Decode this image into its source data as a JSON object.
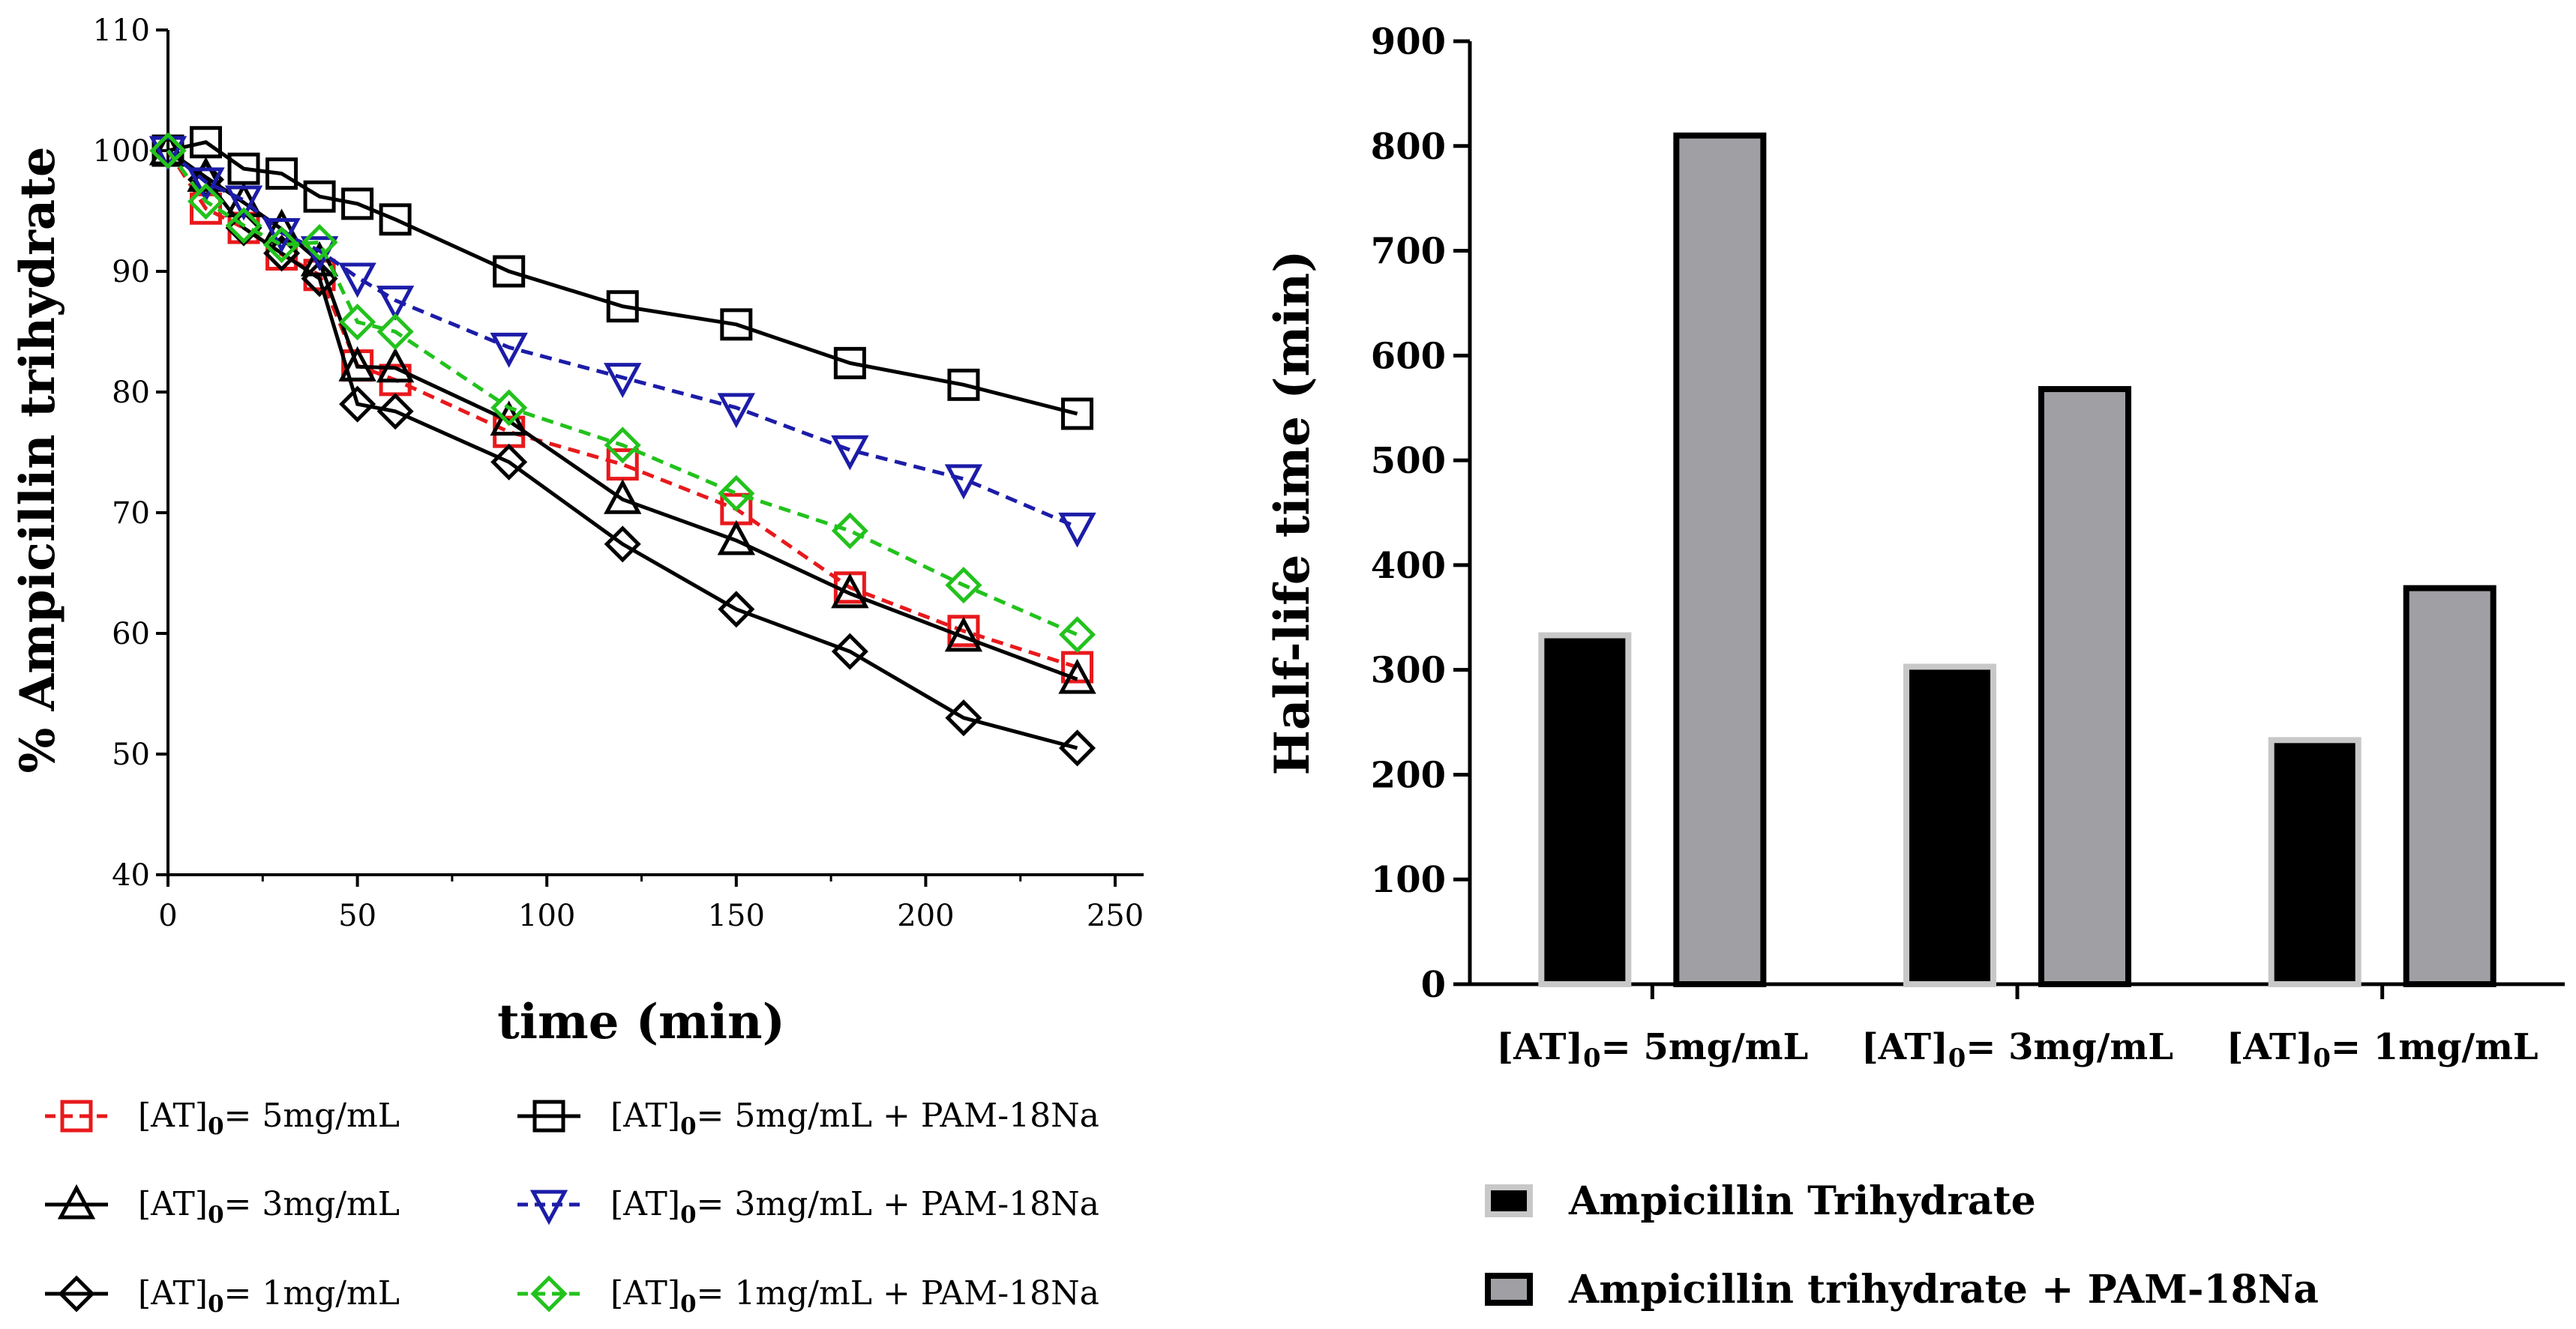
{
  "chart_data": [
    {
      "type": "line",
      "ylabel": "% Ampicillin trihydrate",
      "xlabel": "time (min)",
      "xlim": [
        0,
        250
      ],
      "ylim": [
        40,
        110
      ],
      "xticks": [
        "0",
        "50",
        "100",
        "150",
        "200",
        "250"
      ],
      "yticks": [
        "40",
        "50",
        "60",
        "70",
        "80",
        "90",
        "100",
        "110"
      ],
      "series": [
        {
          "key": "s5",
          "name": "[AT]0= 5mg/mL",
          "color": "#e8191c",
          "marker": "square",
          "dashed": true,
          "x": [
            0,
            10,
            20,
            30,
            40,
            50,
            60,
            90,
            120,
            150,
            180,
            210,
            240
          ],
          "y": [
            100,
            95.2,
            93.6,
            91.4,
            89.7,
            82.2,
            81.0,
            76.7,
            74.0,
            70.3,
            63.8,
            60.2,
            57.2
          ]
        },
        {
          "key": "s3",
          "name": "[AT]0= 3mg/mL",
          "color": "#000000",
          "marker": "triangle-up",
          "dashed": false,
          "x": [
            0,
            10,
            20,
            30,
            40,
            50,
            60,
            90,
            120,
            150,
            180,
            210,
            240
          ],
          "y": [
            100,
            97.8,
            95.7,
            93.5,
            90.8,
            82.1,
            82.0,
            77.6,
            71.1,
            67.7,
            63.3,
            59.7,
            56.2
          ]
        },
        {
          "key": "s1",
          "name": "[AT]0= 1mg/mL",
          "color": "#000000",
          "marker": "diamond",
          "dashed": false,
          "x": [
            0,
            10,
            20,
            30,
            40,
            50,
            60,
            90,
            120,
            150,
            180,
            210,
            240
          ],
          "y": [
            100,
            97.6,
            93.6,
            91.5,
            89.4,
            79.0,
            78.4,
            74.2,
            67.4,
            62.0,
            58.5,
            53.0,
            50.5
          ]
        },
        {
          "key": "p5",
          "name": "[AT]0= 5mg/mL + PAM-18Na",
          "color": "#000000",
          "marker": "square",
          "dashed": false,
          "x": [
            0,
            10,
            20,
            30,
            40,
            50,
            60,
            90,
            120,
            150,
            180,
            210,
            240
          ],
          "y": [
            100,
            100.7,
            98.5,
            98.1,
            96.2,
            95.6,
            94.3,
            90.0,
            87.1,
            85.6,
            82.4,
            80.6,
            78.2
          ]
        },
        {
          "key": "p3",
          "name": "[AT]0= 3mg/mL + PAM-18Na",
          "color": "#1c1ca8",
          "marker": "triangle-down",
          "dashed": true,
          "x": [
            0,
            10,
            20,
            30,
            40,
            50,
            60,
            90,
            120,
            150,
            180,
            210,
            240
          ],
          "y": [
            100,
            97.4,
            95.9,
            93.2,
            91.7,
            89.5,
            87.6,
            83.7,
            81.2,
            78.7,
            75.2,
            72.8,
            68.8
          ]
        },
        {
          "key": "p1",
          "name": "[AT]0= 1mg/mL + PAM-18Na",
          "color": "#22c21c",
          "marker": "diamond",
          "dashed": true,
          "x": [
            0,
            10,
            20,
            30,
            40,
            50,
            60,
            90,
            120,
            150,
            180,
            210,
            240
          ],
          "y": [
            100,
            95.8,
            93.8,
            92.2,
            92.4,
            85.8,
            85.0,
            78.7,
            75.6,
            71.6,
            68.5,
            64.0,
            59.9
          ]
        }
      ],
      "legend": {
        "rows": [
          [
            {
              "series": "s5",
              "prefix": "[AT]",
              "sub": "0",
              "rest": "=  5mg/mL"
            },
            {
              "series": "p5",
              "prefix": "[AT]",
              "sub": "0",
              "rest": "=  5mg/mL + PAM-18Na"
            }
          ],
          [
            {
              "series": "s3",
              "prefix": "[AT]",
              "sub": "0",
              "rest": "= 3mg/mL"
            },
            {
              "series": "p3",
              "prefix": "[AT]",
              "sub": "0",
              "rest": "= 3mg/mL + PAM-18Na"
            }
          ],
          [
            {
              "series": "s1",
              "prefix": "[AT]",
              "sub": "0",
              "rest": "= 1mg/mL"
            },
            {
              "series": "p1",
              "prefix": "[AT]",
              "sub": "0",
              "rest": "= 1mg/mL + PAM-18Na"
            }
          ]
        ],
        "placement": "bottom"
      }
    },
    {
      "type": "bar",
      "ylabel": "Half-life time (min)",
      "ylim": [
        0,
        900
      ],
      "yticks": [
        "0",
        "100",
        "200",
        "300",
        "400",
        "500",
        "600",
        "700",
        "800",
        "900"
      ],
      "categories": [
        {
          "prefix": "[AT]",
          "sub": "0",
          "rest": "= 5mg/mL"
        },
        {
          "prefix": "[AT]",
          "sub": "0",
          "rest": "= 3mg/mL"
        },
        {
          "prefix": "[AT]",
          "sub": "0",
          "rest": "= 1mg/mL"
        }
      ],
      "series": [
        {
          "name": "Ampicillin Trihydrate",
          "color": "#000000",
          "edge": "#c8c8c8",
          "values": [
            333,
            303,
            233
          ]
        },
        {
          "name": "Ampicillin trihydrate + PAM-18Na",
          "color": "#a09fa4",
          "edge": "#000000",
          "values": [
            810,
            568,
            378
          ]
        }
      ],
      "legend": {
        "placement": "bottom"
      }
    }
  ]
}
